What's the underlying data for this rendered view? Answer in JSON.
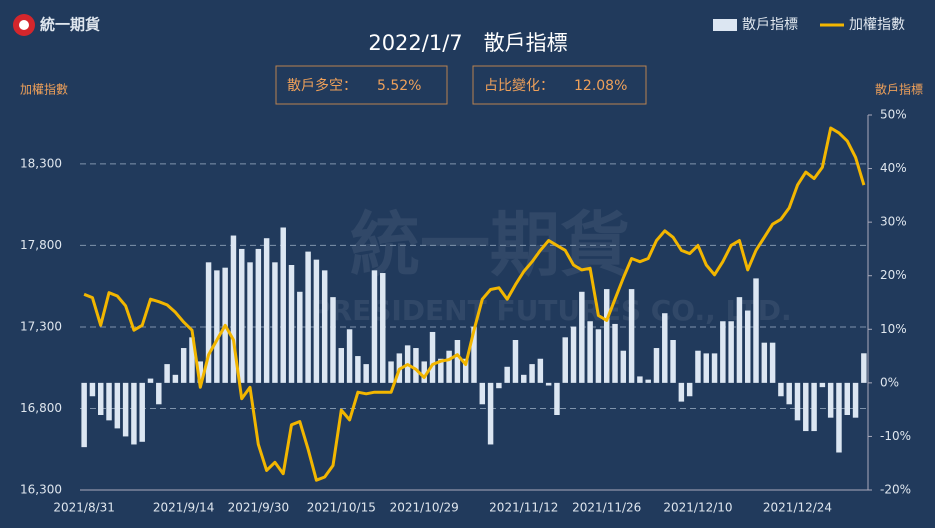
{
  "chart_data": {
    "type": "bar_line",
    "logo": "統一期貨",
    "title": "2022/1/7　散戶指標",
    "annotations": [
      {
        "label": "散戶多空：",
        "text": "5.52%"
      },
      {
        "label": "占比變化：",
        "text": "12.08%"
      }
    ],
    "watermark": [
      "統一期貨",
      "PRESIDENT FUTURES CO., LTD."
    ],
    "y_label": "加權指數",
    "y2_label": "散戶指標",
    "categories": [
      "2021/8/31",
      null,
      null,
      null,
      null,
      null,
      null,
      null,
      null,
      null,
      null,
      null,
      "2021/9/14",
      null,
      null,
      null,
      null,
      null,
      null,
      null,
      null,
      "2021/9/30",
      null,
      null,
      null,
      null,
      null,
      null,
      null,
      null,
      null,
      "2021/10/15",
      null,
      null,
      null,
      null,
      null,
      null,
      null,
      null,
      null,
      "2021/10/29",
      null,
      null,
      null,
      null,
      null,
      null,
      null,
      null,
      null,
      null,
      null,
      "2021/11/12",
      null,
      null,
      null,
      null,
      null,
      null,
      null,
      null,
      null,
      "2021/11/26",
      null,
      null,
      null,
      null,
      null,
      null,
      null,
      null,
      null,
      null,
      "2021/12/10",
      null,
      null,
      null,
      null,
      null,
      null,
      null,
      null,
      null,
      null,
      null,
      "2021/12/24",
      null,
      null,
      null,
      null,
      null,
      null,
      null,
      null
    ],
    "series": [
      {
        "name": "散戶指標",
        "color": "#dce6f2",
        "axis": "y2",
        "kind": "bar",
        "values": [
          -12,
          -2.5,
          -6,
          -7,
          -8.5,
          -10,
          -11.5,
          -11,
          0.8,
          -4,
          3.5,
          1.5,
          6.5,
          8.5,
          4,
          22.5,
          21,
          21.5,
          27.5,
          25,
          22.5,
          25,
          27,
          22.5,
          29,
          22,
          17,
          24.5,
          23,
          21,
          16,
          6.5,
          10,
          5,
          3.5,
          21,
          20.5,
          4,
          5.5,
          7,
          6.5,
          4,
          9.5,
          4.5,
          6,
          8,
          4.5,
          10.5,
          -4,
          -11.5,
          -1,
          3,
          8,
          1.5,
          3.5,
          4.5,
          -0.5,
          -6,
          8.5,
          10.5,
          17,
          11.5,
          10,
          17.5,
          11,
          6,
          17.5,
          1.2,
          0.6,
          6.5,
          13,
          8,
          -3.5,
          -2.5,
          6,
          5.5,
          5.5,
          11.5,
          11.5,
          16,
          13.5,
          19.5,
          7.5,
          7.5,
          -2.5,
          -4,
          -7,
          -9,
          -9,
          -0.8,
          -6.5,
          -13,
          -6,
          -6.5,
          5.52
        ]
      },
      {
        "name": "加權指數",
        "color": "#f2b600",
        "axis": "y",
        "kind": "line",
        "values": [
          17500,
          17480,
          17310,
          17510,
          17490,
          17430,
          17280,
          17310,
          17470,
          17455,
          17435,
          17390,
          17330,
          17280,
          16930,
          17130,
          17220,
          17310,
          17220,
          16860,
          16930,
          16580,
          16420,
          16470,
          16400,
          16700,
          16720,
          16550,
          16360,
          16380,
          16450,
          16790,
          16730,
          16900,
          16890,
          16900,
          16900,
          16900,
          17040,
          17070,
          17040,
          16990,
          17070,
          17090,
          17100,
          17130,
          17070,
          17280,
          17470,
          17530,
          17540,
          17470,
          17560,
          17640,
          17700,
          17770,
          17830,
          17800,
          17770,
          17680,
          17650,
          17660,
          17370,
          17340,
          17470,
          17600,
          17720,
          17700,
          17720,
          17830,
          17890,
          17850,
          17770,
          17750,
          17800,
          17680,
          17620,
          17700,
          17800,
          17830,
          17650,
          17770,
          17850,
          17930,
          17960,
          18030,
          18170,
          18250,
          18210,
          18280,
          18520,
          18490,
          18440,
          18340,
          18170
        ]
      }
    ],
    "ylim": [
      16300,
      18600
    ],
    "yticks": [
      {
        "value": 16300,
        "label": "16,300"
      },
      {
        "value": 16800,
        "label": "16,800"
      },
      {
        "value": 17300,
        "label": "17,300"
      },
      {
        "value": 17800,
        "label": "17,800"
      },
      {
        "value": 18300,
        "label": "18,300"
      }
    ],
    "y2lim": [
      -20,
      50
    ],
    "y2ticks": [
      {
        "value": -20,
        "label": "-20%"
      },
      {
        "value": -10,
        "label": "-10%"
      },
      {
        "value": 0,
        "label": "0%"
      },
      {
        "value": 10,
        "label": "10%"
      },
      {
        "value": 20,
        "label": "20%"
      },
      {
        "value": 30,
        "label": "30%"
      },
      {
        "value": 40,
        "label": "40%"
      },
      {
        "value": 50,
        "label": "50%"
      }
    ],
    "grid": true
  }
}
